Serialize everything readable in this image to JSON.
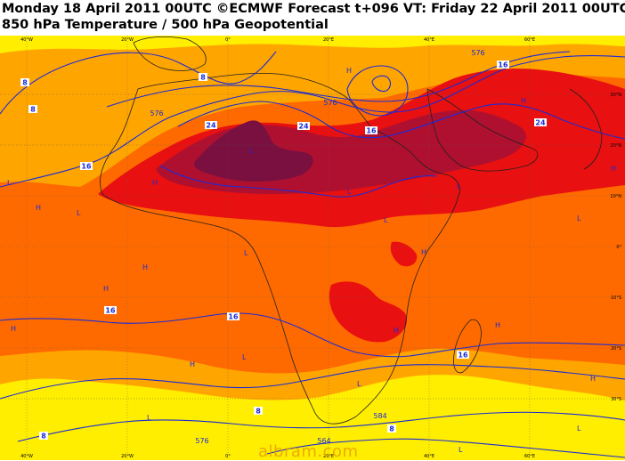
{
  "header": {
    "line1": "Monday 18 April 2011 00UTC ©ECMWF Forecast t+096 VT: Friday 22 April 2011 00UTC",
    "line2": "850 hPa Temperature / 500 hPa Geopotential"
  },
  "axes": {
    "lon_top": [
      "40°W",
      "20°W",
      "0°",
      "20°E",
      "40°E",
      "60°E"
    ],
    "lon_bottom": [
      "40°W",
      "20°W",
      "0°",
      "20°E",
      "40°E",
      "60°E"
    ],
    "lat_right": [
      "30°N",
      "20°N",
      "10°N",
      "0°",
      "10°S",
      "20°S",
      "30°S"
    ]
  },
  "colors": {
    "isotherm_ge24": "#7a1040",
    "isotherm_20_24": "#b01030",
    "isotherm_16_20": "#e81010",
    "isotherm_12_16": "#ff6a00",
    "isotherm_8_12": "#ffa500",
    "isotherm_lt8": "#ffee00",
    "contour_line": "#1a2bd6",
    "coastline": "#202020"
  },
  "temperature_labels": [
    "8",
    "8",
    "8",
    "16",
    "24",
    "24",
    "24",
    "16",
    "16",
    "16",
    "16",
    "16",
    "8",
    "8",
    "8"
  ],
  "geopotential_labels": [
    "576",
    "576",
    "576",
    "576",
    "584",
    "564"
  ],
  "pressure_centres": [
    "L",
    "H",
    "L",
    "H",
    "L",
    "H",
    "L",
    "L",
    "H",
    "H",
    "L",
    "H",
    "H",
    "H",
    "H",
    "L",
    "H",
    "L",
    "L",
    "L",
    "H",
    "L",
    "H",
    "L",
    "L",
    "H"
  ],
  "watermark": "albram.com"
}
